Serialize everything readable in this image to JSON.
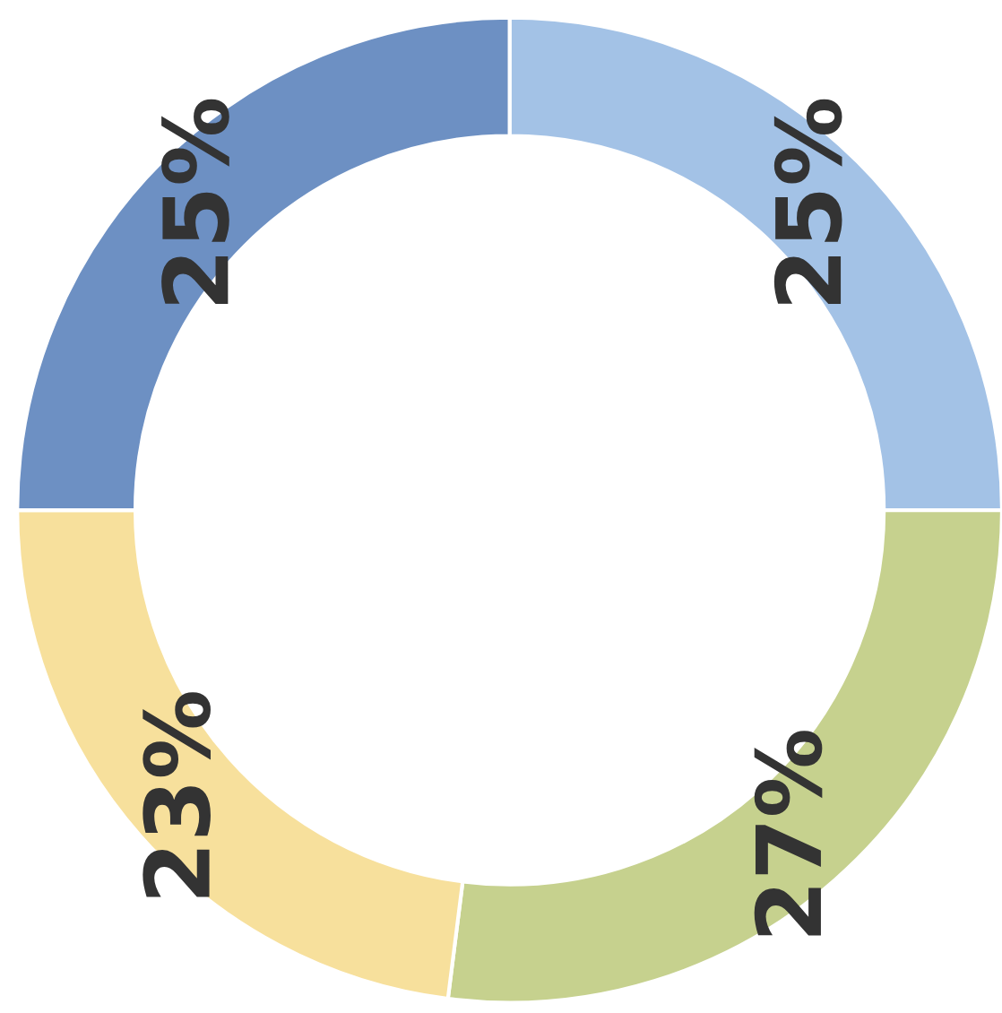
{
  "chart_data": {
    "type": "donut",
    "categories": [
      null,
      null,
      null,
      null
    ],
    "values": [
      25,
      27,
      23,
      25
    ],
    "colors": [
      "#a3c2e6",
      "#c6d18e",
      "#f7e09c",
      "#6d90c3"
    ],
    "value_labels": [
      "25%",
      "27%",
      "23%",
      "25%"
    ]
  }
}
